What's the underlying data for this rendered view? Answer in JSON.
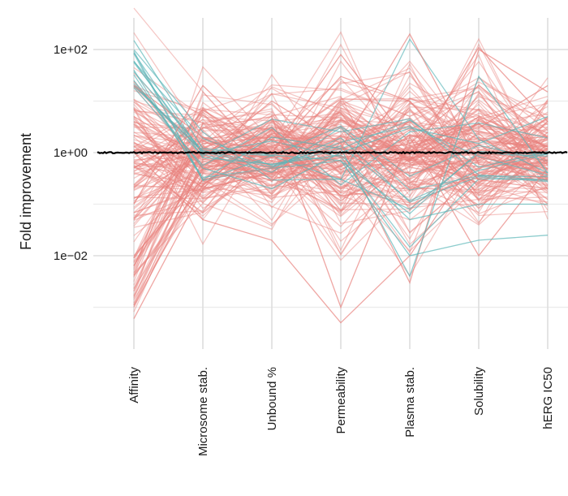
{
  "chart_data": {
    "type": "line",
    "chart_kind": "parallel coordinates",
    "title": "",
    "xlabel": "",
    "ylabel": "Fold improvement",
    "y_scale": "log10",
    "ylim": [
      0.0005,
      800
    ],
    "y_ticks": [
      {
        "value": 100,
        "label": "1e+02"
      },
      {
        "value": 1,
        "label": "1e+00"
      },
      {
        "value": 0.01,
        "label": "1e−02"
      }
    ],
    "y_minor_gridlines": [
      10,
      0.1,
      0.001
    ],
    "grid": true,
    "legend": "none",
    "reference_line": {
      "value": 1,
      "color": "#000000"
    },
    "categories": [
      "Affinity",
      "Microsome stab.",
      "Unbound %",
      "Permeability",
      "Plasma stab.",
      "Solubility",
      "hERG IC50"
    ],
    "groups": [
      {
        "color": "#E8827E",
        "line_count": 150,
        "approximate_range": [
          0.0005,
          200
        ]
      },
      {
        "color": "#5BB6B8",
        "line_count": 12,
        "approximate_range": [
          0.003,
          150
        ]
      }
    ],
    "series": [
      {
        "group": 0,
        "values": [
          0.009,
          0.5,
          0.8,
          1.2,
          0.7,
          110,
          4
        ]
      },
      {
        "group": 0,
        "values": [
          0.01,
          0.3,
          0.5,
          0.9,
          1.5,
          20,
          2
        ]
      },
      {
        "group": 0,
        "values": [
          0.0006,
          0.2,
          0.4,
          0.8,
          0.6,
          5,
          1.3
        ]
      },
      {
        "group": 0,
        "values": [
          0.001,
          0.4,
          0.3,
          0.7,
          0.4,
          0.8,
          0.5
        ]
      },
      {
        "group": 0,
        "values": [
          0.05,
          1.5,
          2,
          1.2,
          200,
          0.6,
          0.3
        ]
      },
      {
        "group": 0,
        "values": [
          0.1,
          20,
          1,
          80,
          1.5,
          3,
          20
        ]
      },
      {
        "group": 0,
        "values": [
          0.5,
          3,
          5,
          0.001,
          2,
          0.01,
          0.5
        ]
      },
      {
        "group": 0,
        "values": [
          1,
          0.05,
          0.02,
          0.0005,
          0.01,
          1,
          0.7
        ]
      },
      {
        "group": 0,
        "values": [
          5,
          0.8,
          10,
          1.5,
          0.003,
          100,
          15
        ]
      },
      {
        "group": 0,
        "values": [
          20,
          2,
          1,
          30,
          10,
          0.3,
          0.2
        ]
      },
      {
        "group": 1,
        "values": [
          150,
          1.2,
          0.9,
          0.7,
          0.01,
          0.02,
          0.025
        ]
      },
      {
        "group": 1,
        "values": [
          40,
          0.3,
          2,
          1.2,
          0.004,
          30,
          0.4
        ]
      },
      {
        "group": 1,
        "values": [
          25,
          0.5,
          0.2,
          1,
          3,
          1.5,
          5
        ]
      },
      {
        "group": 1,
        "values": [
          60,
          0.8,
          0.6,
          0.9,
          0.05,
          0.1,
          0.1
        ]
      }
    ]
  }
}
